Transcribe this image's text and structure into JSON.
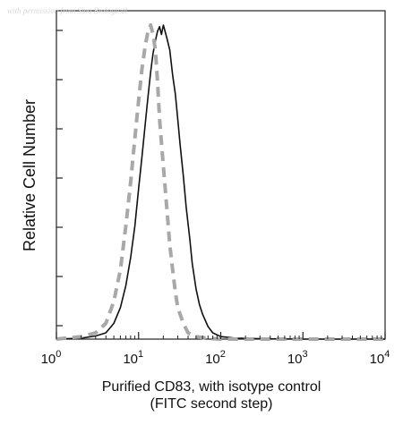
{
  "watermark": "with permission from Sino Biological",
  "chart_data": {
    "type": "line",
    "xscale": "log",
    "xlim": [
      1,
      10000
    ],
    "ylim": [
      0,
      1
    ],
    "xlabel": "Purified CD83, with isotype control",
    "xlabel_line2": "(FITC second step)",
    "ylabel": "Relative Cell Number",
    "x_tick_labels": [
      {
        "base": "10",
        "exp": "0",
        "value": 1
      },
      {
        "base": "10",
        "exp": "1",
        "value": 10
      },
      {
        "base": "10",
        "exp": "2",
        "value": 100
      },
      {
        "base": "10",
        "exp": "3",
        "value": 1000
      },
      {
        "base": "10",
        "exp": "4",
        "value": 10000
      }
    ],
    "grid": false,
    "series": [
      {
        "style": "solid",
        "color": "#111111",
        "x": [
          1,
          2,
          3,
          4,
          5,
          6,
          7,
          8,
          9,
          10,
          11,
          12,
          13,
          14,
          15,
          16,
          17,
          18,
          19,
          20,
          21,
          22,
          24,
          26,
          28,
          30,
          32,
          35,
          38,
          42,
          45,
          50,
          55,
          60,
          70,
          80,
          100,
          150,
          300,
          1000,
          10000
        ],
        "y": [
          0,
          0.003,
          0.01,
          0.02,
          0.05,
          0.1,
          0.17,
          0.26,
          0.36,
          0.48,
          0.58,
          0.68,
          0.77,
          0.85,
          0.91,
          0.95,
          0.98,
          0.995,
          0.97,
          1.0,
          0.98,
          0.96,
          0.92,
          0.84,
          0.78,
          0.7,
          0.62,
          0.52,
          0.42,
          0.32,
          0.24,
          0.16,
          0.11,
          0.08,
          0.04,
          0.02,
          0.008,
          0.003,
          0.001,
          0,
          0
        ]
      },
      {
        "style": "dashed",
        "color": "#a8a8a8",
        "x": [
          1,
          2,
          3,
          4,
          5,
          6,
          7,
          8,
          9,
          10,
          11,
          12,
          13,
          14,
          15,
          16,
          17,
          18,
          20,
          22,
          24,
          26,
          28,
          30,
          35,
          40,
          50,
          70,
          100,
          10000
        ],
        "y": [
          0,
          0.008,
          0.02,
          0.05,
          0.12,
          0.22,
          0.36,
          0.5,
          0.64,
          0.76,
          0.86,
          0.93,
          0.98,
          1.0,
          0.97,
          0.92,
          0.82,
          0.7,
          0.55,
          0.42,
          0.3,
          0.22,
          0.15,
          0.1,
          0.05,
          0.02,
          0.008,
          0.002,
          0,
          0
        ]
      }
    ]
  }
}
